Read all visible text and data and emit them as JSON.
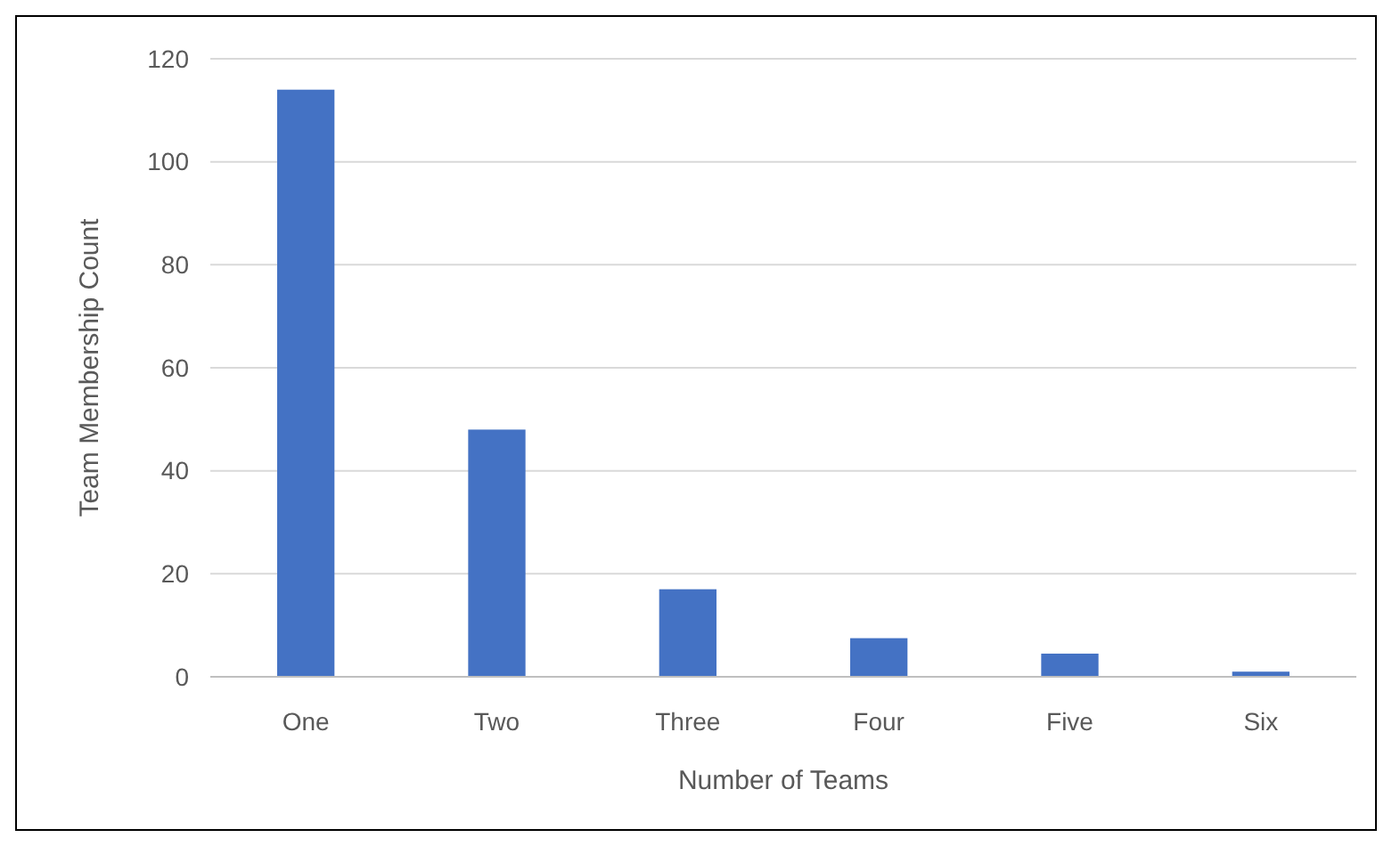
{
  "chart_data": {
    "type": "bar",
    "xlabel": "Number of Teams",
    "ylabel": "Team Membership Count",
    "categories": [
      "One",
      "Two",
      "Three",
      "Four",
      "Five",
      "Six"
    ],
    "values": [
      114,
      48,
      17,
      7.5,
      4.5,
      1
    ],
    "color": "#4472c4",
    "ylim": [
      0,
      120
    ],
    "yticks": [
      0,
      20,
      40,
      60,
      80,
      100,
      120
    ],
    "grid": "y"
  }
}
